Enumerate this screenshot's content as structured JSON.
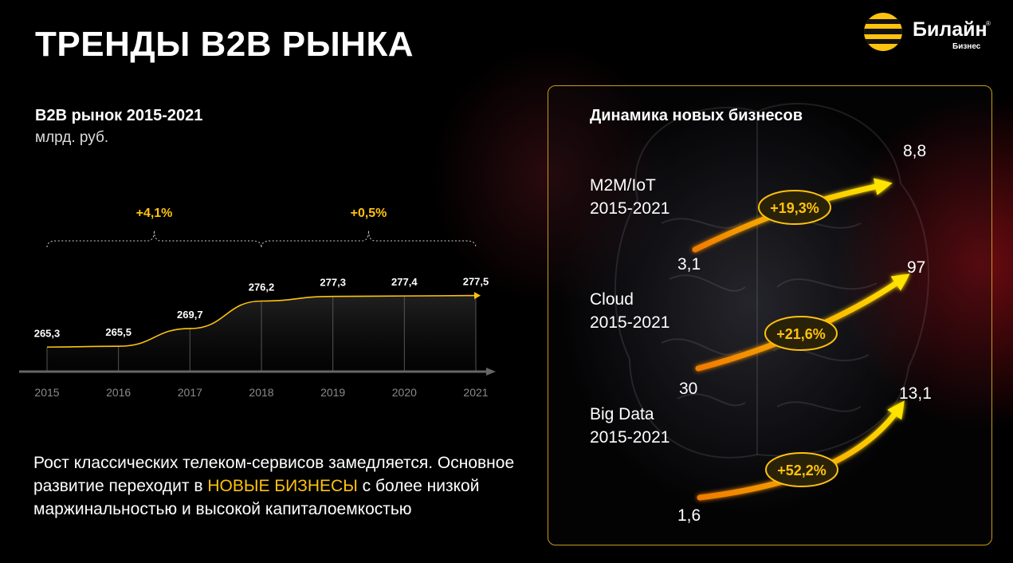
{
  "page": {
    "title": "ТРЕНДЫ B2B РЫНКА"
  },
  "brand": {
    "name": "Билайн",
    "reg": "®",
    "subtitle": "Бизнес",
    "accent": "#ffc20e"
  },
  "left_chart": {
    "title": "B2B рынок 2015-2021",
    "unit": "млрд. руб.",
    "description_part1": "Рост классических телеком-сервисов замедляется. Основное развитие переходит в ",
    "description_highlight": "НОВЫЕ БИЗНЕСЫ",
    "description_part2": " с более низкой маржинальностью и высокой капиталоемкостью"
  },
  "right_panel": {
    "title": "Динамика новых бизнесов",
    "segments": [
      {
        "name": "M2M/IoT",
        "period": "2015-2021"
      },
      {
        "name": "Cloud",
        "period": "2015-2021"
      },
      {
        "name": "Big Data",
        "period": "2015-2021"
      }
    ]
  },
  "chart_data": [
    {
      "type": "area",
      "title": "B2B рынок 2015-2021",
      "ylabel": "млрд. руб.",
      "categories": [
        "2015",
        "2016",
        "2017",
        "2018",
        "2019",
        "2020",
        "2021"
      ],
      "values": [
        265.3,
        265.5,
        269.7,
        276.2,
        277.3,
        277.4,
        277.5
      ],
      "value_labels": [
        "265,3",
        "265,5",
        "269,7",
        "276,2",
        "277,3",
        "277,4",
        "277,5"
      ],
      "growth_annotations": [
        {
          "label": "+4,1%",
          "from": "2015",
          "to": "2018"
        },
        {
          "label": "+0,5%",
          "from": "2018",
          "to": "2021"
        }
      ],
      "grid": false,
      "color": "#ffc20e"
    },
    {
      "type": "line",
      "title": "Динамика новых бизнесов",
      "series": [
        {
          "name": "M2M/IoT",
          "x": [
            "2015",
            "2021"
          ],
          "values": [
            3.1,
            8.8
          ],
          "labels": [
            "3,1",
            "8,8"
          ],
          "growth": "+19,3%"
        },
        {
          "name": "Cloud",
          "x": [
            "2015",
            "2021"
          ],
          "values": [
            30,
            97
          ],
          "labels": [
            "30",
            "97"
          ],
          "growth": "+21,6%"
        },
        {
          "name": "Big Data",
          "x": [
            "2015",
            "2021"
          ],
          "values": [
            1.6,
            13.1
          ],
          "labels": [
            "1,6",
            "13,1"
          ],
          "growth": "+52,2%"
        }
      ],
      "colors": {
        "start": "#f07c00",
        "end": "#ffe400"
      }
    }
  ]
}
